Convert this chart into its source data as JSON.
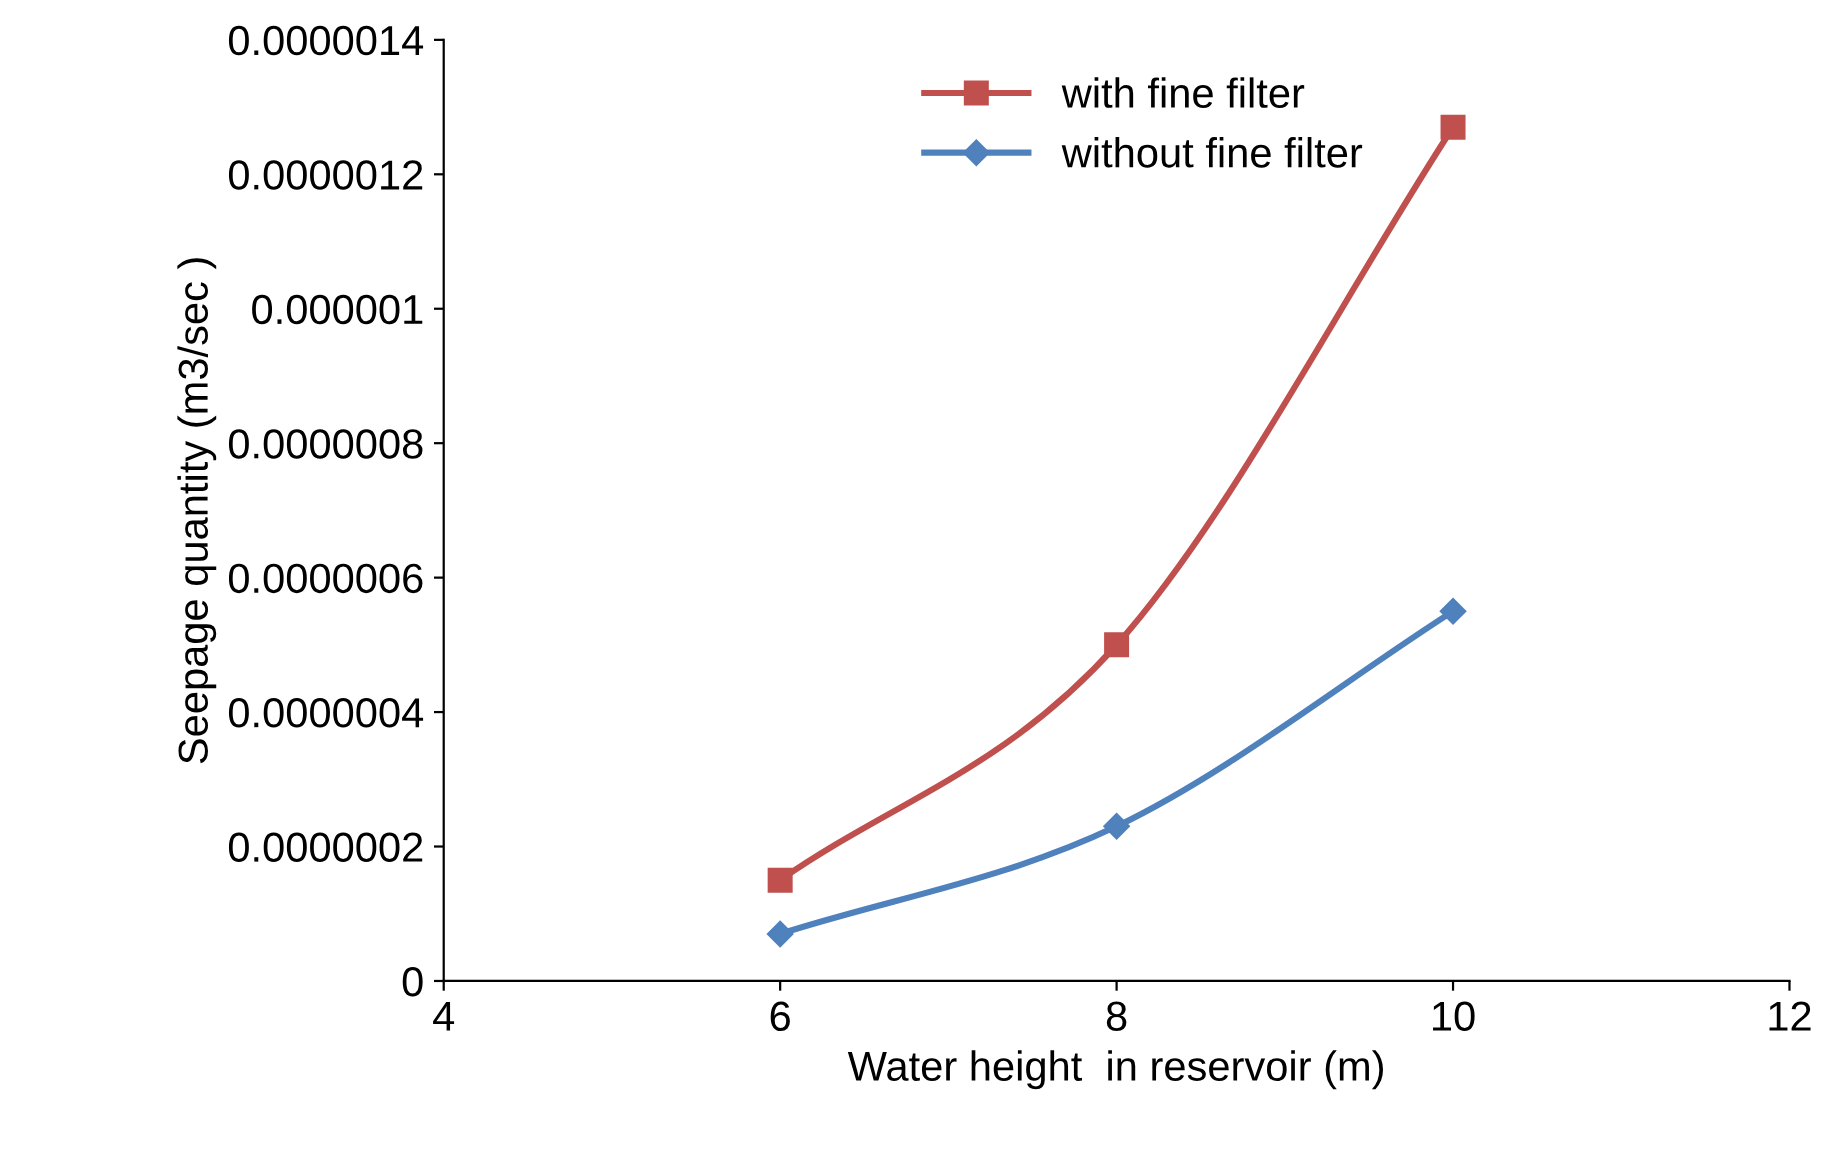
{
  "chart_data": {
    "type": "line",
    "xlabel": "Water height  in reservoir (m)",
    "ylabel": "Seepage quantity (m3/sec )",
    "x": [
      6,
      8,
      10
    ],
    "series": [
      {
        "name": "with fine filter",
        "color": "#c0504d",
        "marker": "square",
        "values": [
          1.5e-07,
          5e-07,
          1.27e-06
        ]
      },
      {
        "name": "without fine filter",
        "color": "#4f81bd",
        "marker": "diamond",
        "values": [
          7e-08,
          2.3e-07,
          5.5e-07
        ]
      }
    ],
    "xlim": [
      4,
      12
    ],
    "xticks": [
      4,
      6,
      8,
      10,
      12
    ],
    "ylim": [
      0,
      1.4e-06
    ],
    "yticks": [
      0,
      {
        "value": 2e-07,
        "label": "0.0000002"
      },
      {
        "value": 4e-07,
        "label": "0.0000004"
      },
      {
        "value": 6e-07,
        "label": "0.0000006"
      },
      {
        "value": 8e-07,
        "label": "0.0000008"
      },
      {
        "value": 1e-06,
        "label": "0.000001"
      },
      {
        "value": 1.2e-06,
        "label": "0.0000012"
      },
      {
        "value": 1.4e-06,
        "label": "0.0000014"
      }
    ],
    "grid": false,
    "legend": "top",
    "line_style": "solid"
  }
}
